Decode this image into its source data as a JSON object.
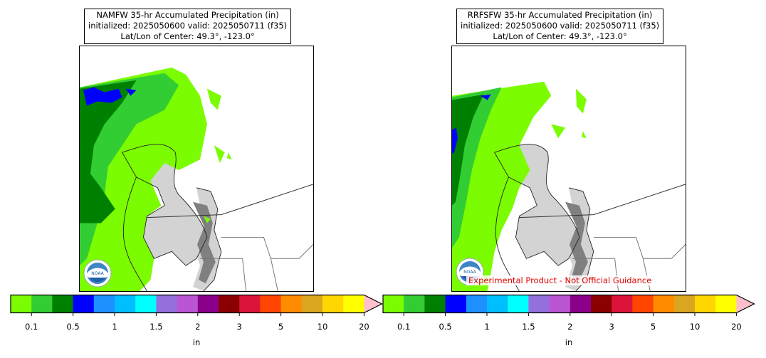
{
  "left_panel": {
    "title_line1": "NAMFW 35-hr Accumulated Precipitation (in)",
    "title_line2": "initialized: 2025050600 valid: 2025050711 (f35)",
    "title_line3": "Lat/Lon of Center: 49.3°, -123.0°"
  },
  "right_panel": {
    "title_line1": "RRFSFW 35-hr Accumulated Precipitation (in)",
    "title_line2": "initialized: 2025050600 valid: 2025050711 (f35)",
    "title_line3": "Lat/Lon of Center: 49.3°, -123.0°",
    "experimental_label": "Experimental Product - Not Official Guidance"
  },
  "logo": {
    "text": "NOAA"
  },
  "colorbar": {
    "unit_label": "in",
    "tick_labels": [
      "0.1",
      "0.5",
      "1",
      "1.5",
      "2",
      "3",
      "5",
      "10",
      "20"
    ],
    "colors": [
      "#7cfc00",
      "#32cd32",
      "#008000",
      "#0000ff",
      "#1e90ff",
      "#00bfff",
      "#00ffff",
      "#9370db",
      "#ba55d3",
      "#8b008b",
      "#8b0000",
      "#dc143c",
      "#ff4500",
      "#ff8c00",
      "#daa520",
      "#ffd700",
      "#ffff00"
    ],
    "extend_color": "#ffc0cb"
  },
  "map_colors": {
    "land": "#ffffff",
    "water": "#d3d3d3",
    "deep_water": "#808080",
    "light_precip": "#7cfc00",
    "medium_precip": "#32cd32",
    "heavy_precip": "#008000",
    "very_heavy_precip": "#0000ff",
    "coastline": "#222222",
    "border": "#555555"
  }
}
